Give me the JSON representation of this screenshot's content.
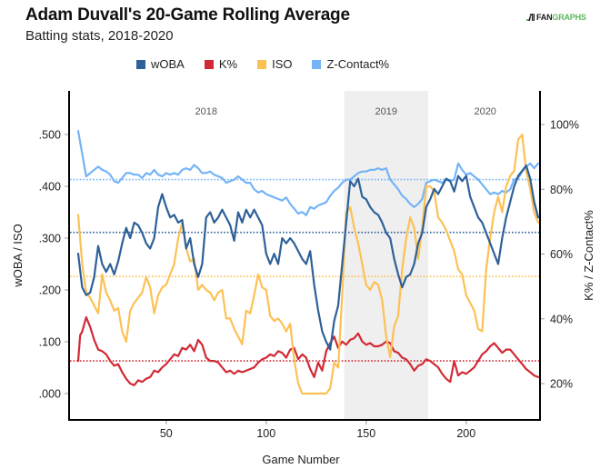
{
  "header": {
    "title": "Adam Duvall's 20-Game Rolling Average",
    "subtitle": "Batting stats, 2018-2020",
    "logo_fan": "FAN",
    "logo_graphs": "GRAPHS"
  },
  "chart_data": {
    "type": "line",
    "title": "Adam Duvall's 20-Game Rolling Average",
    "subtitle": "Batting stats, 2018-2020",
    "xlabel": "Game Number",
    "ylabel_left": "wOBA / ISO",
    "ylabel_right": "K% / Z-Contact%",
    "xlim": [
      1,
      237
    ],
    "ylim_left": [
      -0.05,
      0.53
    ],
    "ylim_right": [
      12,
      105
    ],
    "x_ticks": [
      50,
      100,
      150,
      200
    ],
    "x_tick_labels": [
      "50",
      "100",
      "150",
      "200"
    ],
    "y_left_ticks": [
      0.0,
      0.1,
      0.2,
      0.3,
      0.4,
      0.5
    ],
    "y_left_tick_labels": [
      ".000",
      ".100",
      ".200",
      ".300",
      ".400",
      ".500"
    ],
    "y_right_ticks": [
      20,
      40,
      60,
      80,
      100
    ],
    "y_right_tick_labels": [
      "20%",
      "40%",
      "60%",
      "80%",
      "100%"
    ],
    "grid": false,
    "legend_position": "top-center",
    "season_bands": [
      {
        "label": "2018",
        "start": 1,
        "end": 138,
        "shaded": false
      },
      {
        "label": "2019",
        "start": 139,
        "end": 180,
        "shaded": true
      },
      {
        "label": "2020",
        "start": 181,
        "end": 237,
        "shaded": false
      }
    ],
    "series": [
      {
        "name": "wOBA",
        "axis": "left",
        "color": "#2e6099",
        "average": 0.311,
        "x": [
          6,
          8,
          10,
          12,
          14,
          16,
          18,
          20,
          22,
          24,
          26,
          28,
          30,
          32,
          34,
          36,
          38,
          40,
          42,
          44,
          46,
          48,
          50,
          52,
          54,
          56,
          58,
          60,
          62,
          64,
          66,
          68,
          70,
          72,
          74,
          76,
          78,
          80,
          82,
          84,
          86,
          88,
          90,
          92,
          94,
          96,
          98,
          100,
          102,
          104,
          106,
          108,
          110,
          112,
          114,
          116,
          118,
          120,
          122,
          124,
          126,
          128,
          130,
          132,
          134,
          136,
          138,
          140,
          142,
          144,
          146,
          148,
          150,
          152,
          154,
          156,
          158,
          160,
          162,
          164,
          166,
          168,
          170,
          172,
          174,
          176,
          178,
          180,
          182,
          184,
          186,
          188,
          190,
          192,
          194,
          196,
          198,
          200,
          202,
          204,
          206,
          208,
          210,
          212,
          214,
          216,
          218,
          220,
          222,
          224,
          226,
          228,
          230,
          232,
          234,
          236
        ],
        "values": [
          0.27,
          0.205,
          0.19,
          0.195,
          0.225,
          0.285,
          0.25,
          0.235,
          0.25,
          0.23,
          0.255,
          0.29,
          0.32,
          0.3,
          0.33,
          0.325,
          0.31,
          0.29,
          0.28,
          0.3,
          0.36,
          0.385,
          0.36,
          0.34,
          0.345,
          0.33,
          0.335,
          0.28,
          0.3,
          0.25,
          0.225,
          0.25,
          0.34,
          0.35,
          0.33,
          0.34,
          0.355,
          0.34,
          0.325,
          0.295,
          0.35,
          0.33,
          0.355,
          0.34,
          0.355,
          0.34,
          0.325,
          0.27,
          0.25,
          0.27,
          0.25,
          0.3,
          0.29,
          0.3,
          0.29,
          0.275,
          0.26,
          0.25,
          0.275,
          0.21,
          0.16,
          0.12,
          0.1,
          0.085,
          0.14,
          0.17,
          0.25,
          0.33,
          0.41,
          0.4,
          0.415,
          0.38,
          0.375,
          0.36,
          0.35,
          0.345,
          0.33,
          0.31,
          0.3,
          0.26,
          0.23,
          0.205,
          0.225,
          0.23,
          0.25,
          0.29,
          0.31,
          0.36,
          0.375,
          0.395,
          0.385,
          0.4,
          0.415,
          0.41,
          0.39,
          0.42,
          0.41,
          0.42,
          0.38,
          0.36,
          0.34,
          0.33,
          0.31,
          0.29,
          0.27,
          0.25,
          0.3,
          0.34,
          0.37,
          0.4,
          0.42,
          0.43,
          0.44,
          0.415,
          0.37,
          0.34
        ]
      },
      {
        "name": "K%",
        "axis": "right",
        "color": "#d12a35",
        "average": 27.0,
        "x": [
          6,
          7,
          8,
          10,
          12,
          14,
          16,
          18,
          20,
          22,
          24,
          26,
          28,
          30,
          32,
          34,
          36,
          38,
          40,
          42,
          44,
          46,
          48,
          50,
          52,
          54,
          56,
          58,
          60,
          62,
          64,
          66,
          68,
          70,
          72,
          74,
          76,
          78,
          80,
          82,
          84,
          86,
          88,
          90,
          92,
          94,
          96,
          98,
          100,
          102,
          104,
          106,
          108,
          110,
          112,
          114,
          116,
          118,
          120,
          122,
          124,
          126,
          128,
          130,
          132,
          134,
          136,
          138,
          140,
          142,
          144,
          146,
          148,
          150,
          152,
          154,
          156,
          158,
          160,
          162,
          164,
          166,
          168,
          170,
          172,
          174,
          176,
          178,
          180,
          182,
          184,
          186,
          188,
          190,
          192,
          194,
          196,
          198,
          200,
          202,
          204,
          206,
          208,
          210,
          212,
          214,
          216,
          218,
          220,
          222,
          224,
          226,
          228,
          230,
          232,
          234,
          236
        ],
        "values": [
          27.0,
          35.0,
          36.0,
          40.5,
          37.5,
          33.5,
          30.5,
          30.0,
          29.0,
          27.0,
          25.5,
          26.0,
          23.5,
          21.5,
          20.0,
          19.5,
          21.0,
          20.5,
          21.5,
          22.0,
          24.0,
          23.5,
          25.0,
          26.0,
          27.5,
          29.0,
          28.5,
          31.0,
          30.5,
          32.0,
          30.0,
          33.5,
          32.0,
          28.0,
          27.0,
          27.0,
          26.5,
          25.0,
          23.5,
          24.0,
          23.0,
          24.0,
          23.5,
          24.0,
          24.5,
          25.0,
          26.5,
          27.5,
          28.0,
          29.0,
          28.5,
          30.0,
          29.5,
          28.0,
          30.5,
          31.0,
          27.5,
          29.0,
          28.0,
          24.5,
          22.0,
          26.5,
          24.0,
          30.0,
          32.5,
          34.5,
          31.0,
          33.0,
          32.0,
          33.5,
          34.0,
          35.5,
          33.0,
          32.0,
          32.5,
          31.5,
          31.5,
          32.0,
          33.0,
          32.5,
          30.0,
          29.5,
          28.0,
          27.5,
          26.0,
          24.0,
          25.5,
          26.0,
          27.5,
          27.0,
          26.0,
          25.0,
          23.0,
          21.5,
          20.5,
          27.0,
          22.5,
          23.5,
          23.0,
          24.0,
          25.0,
          27.0,
          29.0,
          30.0,
          31.5,
          32.5,
          31.0,
          29.5,
          30.5,
          30.5,
          29.0,
          27.5,
          26.0,
          24.5,
          23.5,
          22.5,
          22.0
        ]
      },
      {
        "name": "ISO",
        "axis": "left",
        "color": "#fcc155",
        "average": 0.226,
        "x": [
          6,
          8,
          10,
          12,
          14,
          16,
          18,
          20,
          22,
          24,
          26,
          28,
          30,
          32,
          34,
          36,
          38,
          40,
          42,
          44,
          46,
          48,
          50,
          52,
          54,
          56,
          58,
          60,
          62,
          64,
          66,
          68,
          70,
          72,
          74,
          76,
          78,
          80,
          82,
          84,
          86,
          88,
          90,
          92,
          94,
          96,
          98,
          100,
          102,
          104,
          106,
          108,
          110,
          112,
          114,
          116,
          118,
          120,
          122,
          124,
          126,
          128,
          130,
          132,
          134,
          136,
          138,
          140,
          142,
          144,
          146,
          148,
          150,
          152,
          154,
          156,
          158,
          160,
          162,
          164,
          166,
          168,
          170,
          172,
          174,
          176,
          178,
          180,
          182,
          184,
          186,
          188,
          190,
          192,
          194,
          196,
          198,
          200,
          202,
          204,
          206,
          208,
          210,
          212,
          214,
          216,
          218,
          220,
          222,
          224,
          226,
          228,
          230,
          232,
          234,
          236
        ],
        "values": [
          0.345,
          0.25,
          0.195,
          0.185,
          0.17,
          0.155,
          0.23,
          0.195,
          0.18,
          0.16,
          0.165,
          0.12,
          0.1,
          0.16,
          0.175,
          0.185,
          0.195,
          0.225,
          0.205,
          0.155,
          0.19,
          0.205,
          0.21,
          0.23,
          0.25,
          0.3,
          0.33,
          0.28,
          0.255,
          0.26,
          0.2,
          0.21,
          0.2,
          0.195,
          0.18,
          0.195,
          0.2,
          0.145,
          0.145,
          0.125,
          0.11,
          0.095,
          0.16,
          0.155,
          0.19,
          0.23,
          0.205,
          0.2,
          0.15,
          0.14,
          0.145,
          0.135,
          0.12,
          0.135,
          0.065,
          0.02,
          0.0,
          0.0,
          0.0,
          0.0,
          0.0,
          0.0,
          0.0,
          0.01,
          0.06,
          0.05,
          0.19,
          0.35,
          0.36,
          0.32,
          0.29,
          0.25,
          0.21,
          0.2,
          0.215,
          0.21,
          0.18,
          0.11,
          0.07,
          0.13,
          0.15,
          0.24,
          0.3,
          0.34,
          0.32,
          0.26,
          0.32,
          0.4,
          0.4,
          0.39,
          0.34,
          0.33,
          0.315,
          0.295,
          0.275,
          0.24,
          0.23,
          0.19,
          0.175,
          0.16,
          0.125,
          0.12,
          0.24,
          0.3,
          0.35,
          0.38,
          0.35,
          0.4,
          0.42,
          0.43,
          0.49,
          0.5,
          0.43,
          0.395,
          0.35,
          0.33
        ]
      },
      {
        "name": "Z-Contact%",
        "axis": "right",
        "color": "#74b4f7",
        "average": 83.0,
        "x": [
          6,
          8,
          10,
          12,
          14,
          16,
          18,
          20,
          22,
          24,
          26,
          28,
          30,
          32,
          34,
          36,
          38,
          40,
          42,
          44,
          46,
          48,
          50,
          52,
          54,
          56,
          58,
          60,
          62,
          64,
          66,
          68,
          70,
          72,
          74,
          76,
          78,
          80,
          82,
          84,
          86,
          88,
          90,
          92,
          94,
          96,
          98,
          100,
          102,
          104,
          106,
          108,
          110,
          112,
          114,
          116,
          118,
          120,
          122,
          124,
          126,
          128,
          130,
          132,
          134,
          136,
          138,
          140,
          142,
          144,
          146,
          148,
          150,
          152,
          154,
          156,
          158,
          160,
          162,
          164,
          166,
          168,
          170,
          172,
          174,
          176,
          178,
          180,
          182,
          184,
          186,
          188,
          190,
          192,
          194,
          196,
          198,
          200,
          202,
          204,
          206,
          208,
          210,
          212,
          214,
          216,
          218,
          220,
          222,
          224,
          226,
          228,
          230,
          232,
          234,
          236
        ],
        "values": [
          98.0,
          91.0,
          84.0,
          85.0,
          86.0,
          87.0,
          86.0,
          85.5,
          84.5,
          82.5,
          82.0,
          83.5,
          85.0,
          85.0,
          84.5,
          84.5,
          83.5,
          85.0,
          84.5,
          86.0,
          84.5,
          84.0,
          85.0,
          84.5,
          85.0,
          84.5,
          86.0,
          86.5,
          86.0,
          87.5,
          86.5,
          85.0,
          85.0,
          85.5,
          84.5,
          84.0,
          83.5,
          82.0,
          82.5,
          83.0,
          84.0,
          83.0,
          82.0,
          82.0,
          80.0,
          79.0,
          79.5,
          78.5,
          78.0,
          77.5,
          77.0,
          76.5,
          77.5,
          75.5,
          74.0,
          72.5,
          73.0,
          72.0,
          74.5,
          74.0,
          75.0,
          75.5,
          76.0,
          78.0,
          79.5,
          80.5,
          82.0,
          83.0,
          83.0,
          84.0,
          85.0,
          85.5,
          85.5,
          86.0,
          86.0,
          86.5,
          86.0,
          86.5,
          83.0,
          81.5,
          80.0,
          78.0,
          77.0,
          75.5,
          74.5,
          75.5,
          77.0,
          82.0,
          82.5,
          83.0,
          82.5,
          82.0,
          83.0,
          82.5,
          83.0,
          88.0,
          86.0,
          84.5,
          85.0,
          84.0,
          83.0,
          81.5,
          80.0,
          78.5,
          79.0,
          78.5,
          79.5,
          79.0,
          80.0,
          83.0,
          83.5,
          85.5,
          87.0,
          88.0,
          86.5,
          88.0
        ]
      }
    ]
  }
}
